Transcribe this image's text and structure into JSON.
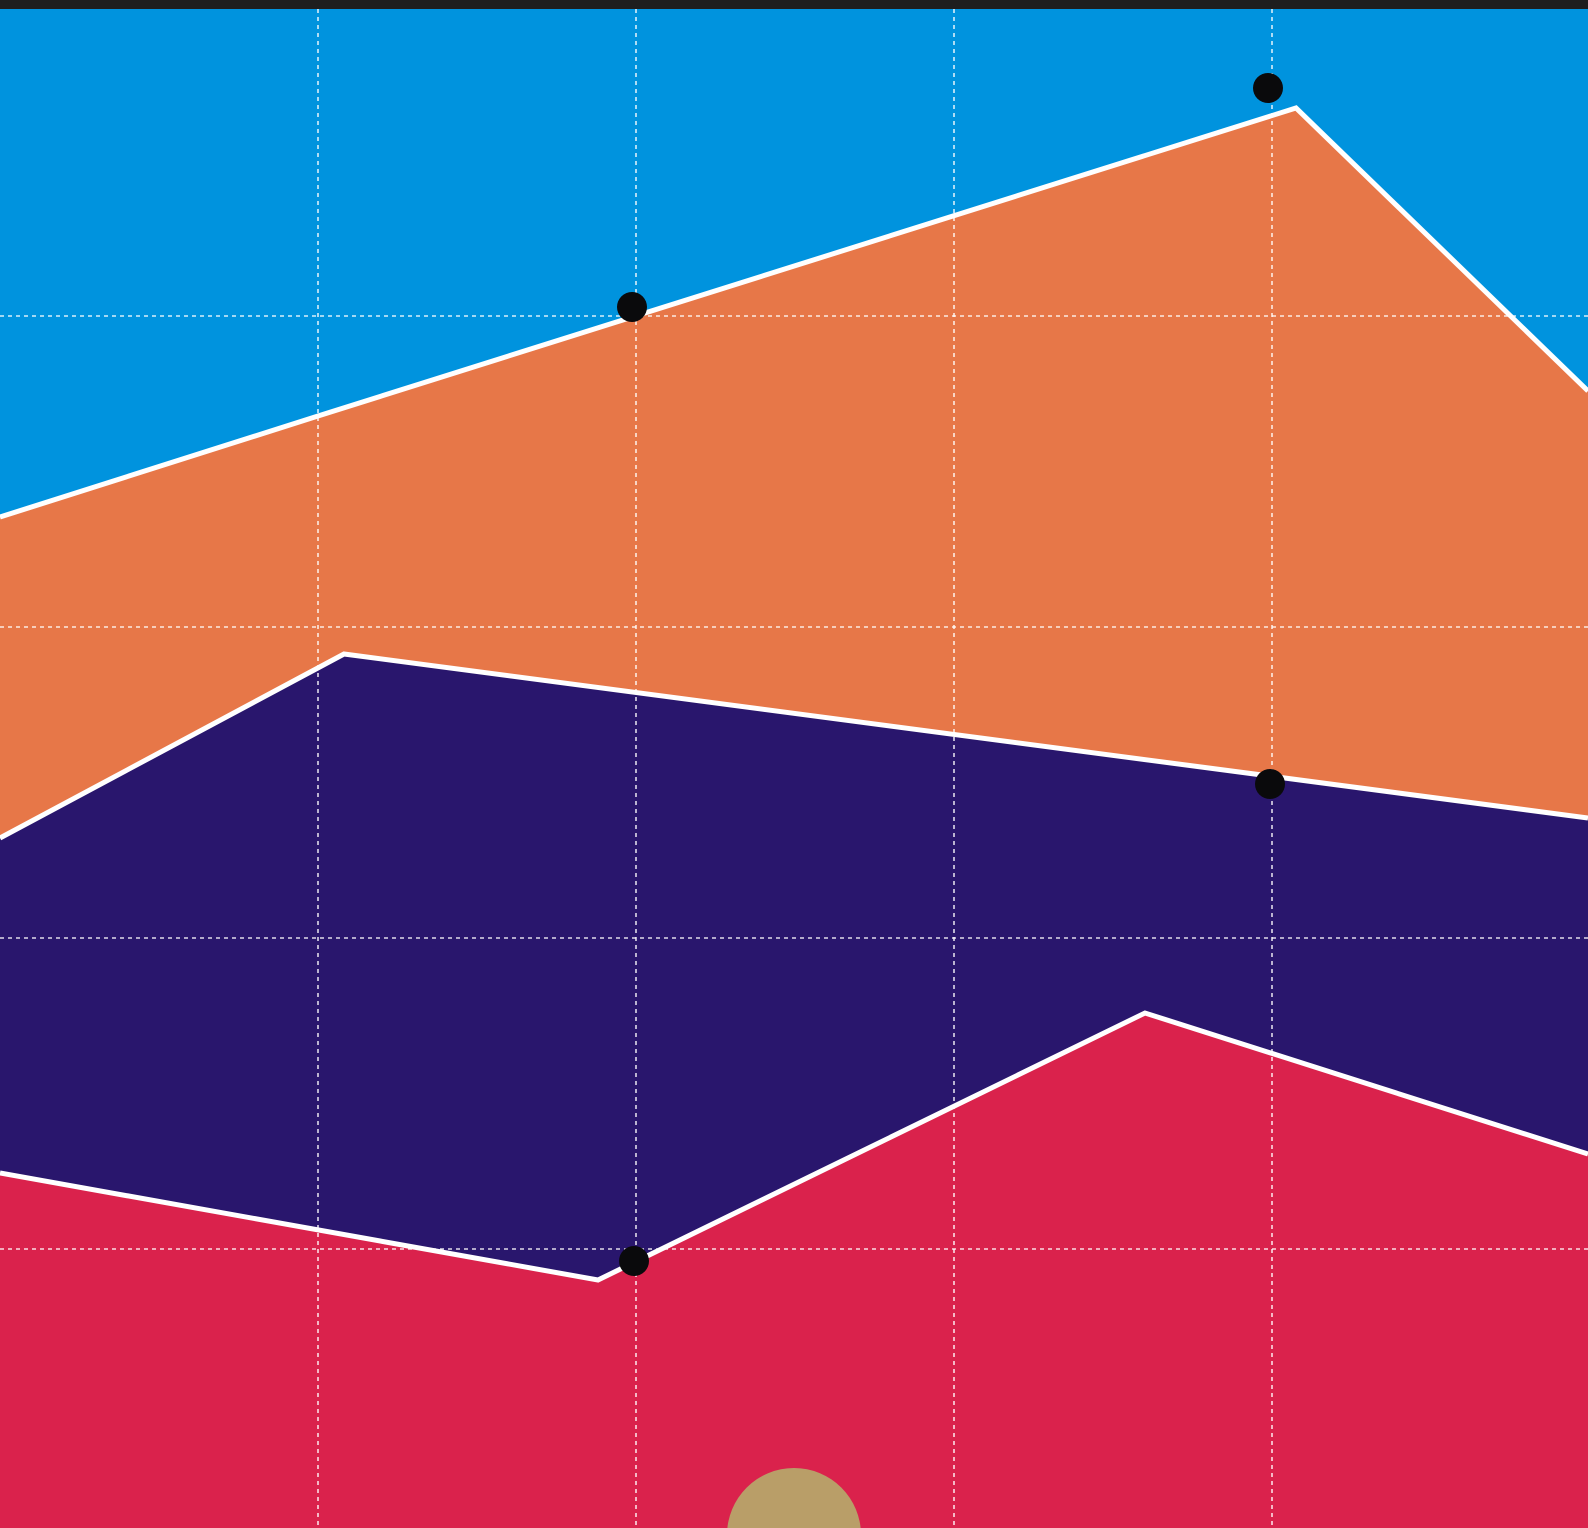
{
  "scene": {
    "colors": {
      "top_bar": "#1e1e1e",
      "sky": "#0093de",
      "orange": "#e77748",
      "purple": "#29166d",
      "red": "#da224c",
      "boundary": "#ffffff",
      "grid": "#ffffff",
      "marker": "#0a0a0c",
      "player": "#b99e68"
    },
    "grid": {
      "columns": 5,
      "rows": 5
    },
    "bands": [
      {
        "name": "orange-band",
        "color_key": "orange"
      },
      {
        "name": "purple-band",
        "color_key": "purple"
      },
      {
        "name": "red-band",
        "color_key": "red"
      }
    ],
    "markers": [
      {
        "name": "marker-dot-1"
      },
      {
        "name": "marker-dot-2"
      },
      {
        "name": "marker-dot-3"
      },
      {
        "name": "marker-dot-4"
      }
    ],
    "player": {
      "name": "player-ball"
    }
  }
}
